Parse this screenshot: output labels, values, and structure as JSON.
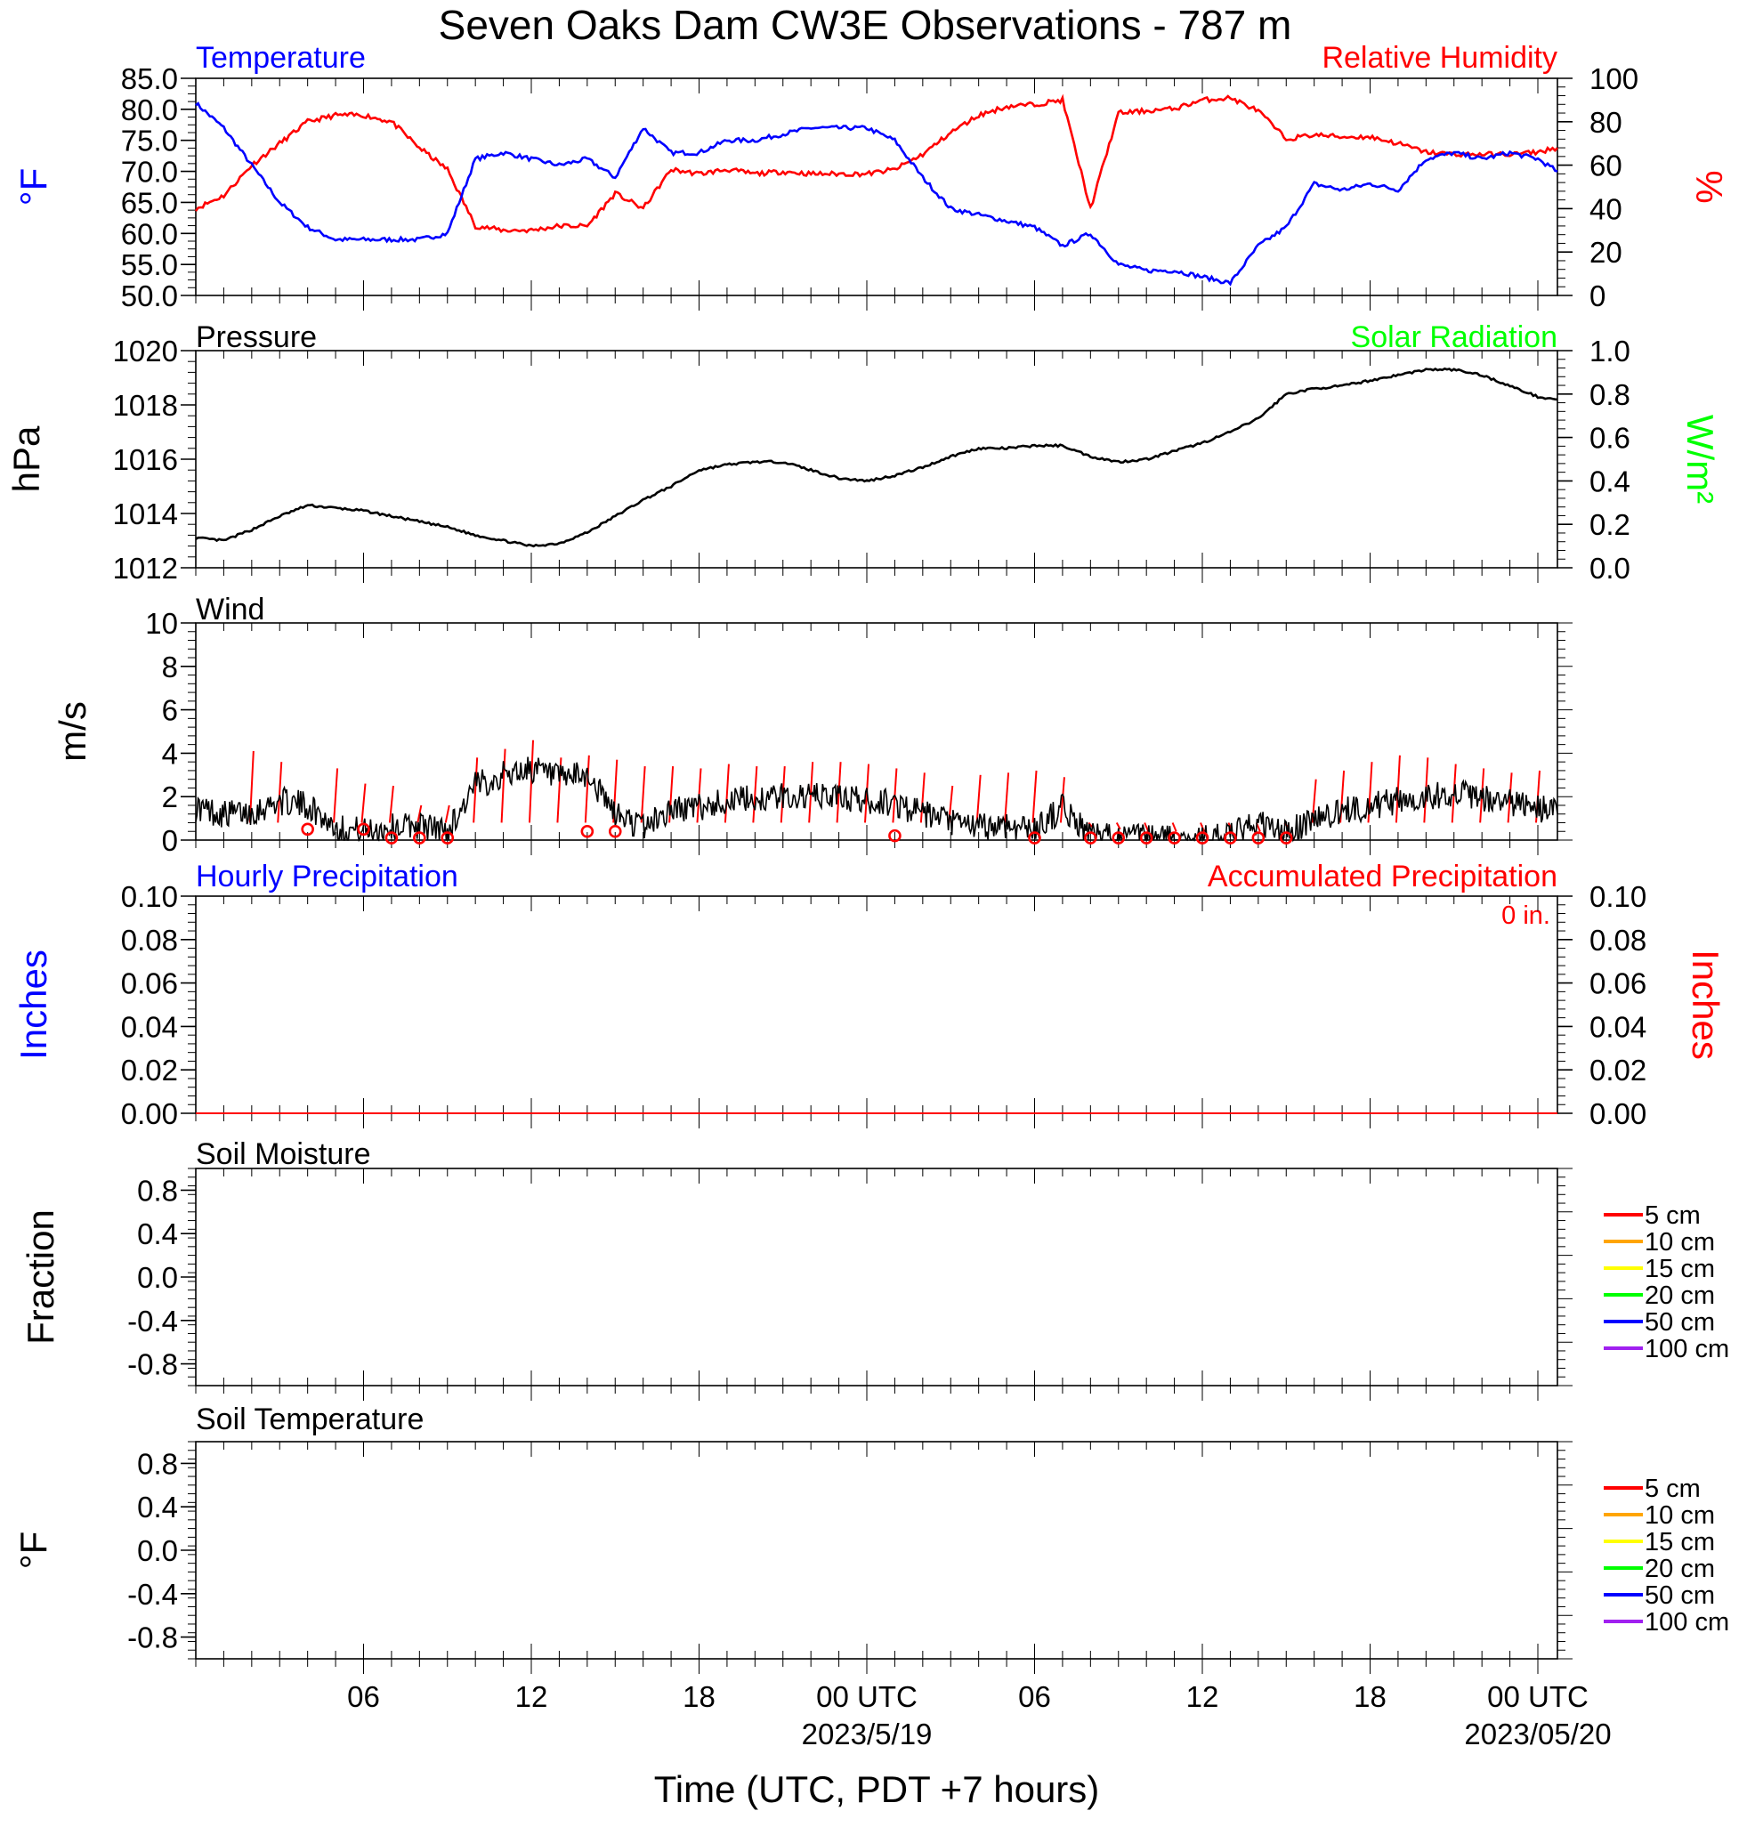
{
  "title": "Seven Oaks Dam CW3E Observations - 787 m",
  "x_axis": {
    "title": "Time (UTC, PDT +7 hours)",
    "ticks": [
      {
        "hour": 6,
        "label": "06",
        "sub": ""
      },
      {
        "hour": 12,
        "label": "12",
        "sub": ""
      },
      {
        "hour": 18,
        "label": "18",
        "sub": ""
      },
      {
        "hour": 24,
        "label": "00 UTC",
        "sub": "2023/5/19"
      },
      {
        "hour": 30,
        "label": "06",
        "sub": ""
      },
      {
        "hour": 36,
        "label": "12",
        "sub": ""
      },
      {
        "hour": 42,
        "label": "18",
        "sub": ""
      },
      {
        "hour": 48,
        "label": "00 UTC",
        "sub": "2023/05/20"
      }
    ]
  },
  "colors": {
    "temperature": "#0000ff",
    "humidity": "#ff0000",
    "pressure": "#000000",
    "solar": "#00ff00",
    "wind": "#000000",
    "gust": "#ff0000",
    "hourly_precip": "#0000ff",
    "accum_precip": "#ff0000"
  },
  "panels": {
    "temp_rh": {
      "title_left": "Temperature",
      "title_right": "Relative Humidity",
      "ylabel_left": "°F",
      "ylabel_right": "%",
      "left_ticks": [
        "50.0",
        "55.0",
        "60.0",
        "65.0",
        "70.0",
        "75.0",
        "80.0",
        "85.0"
      ],
      "right_ticks": [
        "0",
        "20",
        "40",
        "60",
        "80",
        "100"
      ]
    },
    "pressure": {
      "title_left": "Pressure",
      "title_right": "Solar Radiation",
      "ylabel_left": "hPa",
      "ylabel_right": "W/m²",
      "left_ticks": [
        "1012",
        "1014",
        "1016",
        "1018",
        "1020"
      ],
      "right_ticks": [
        "0.0",
        "0.2",
        "0.4",
        "0.6",
        "0.8",
        "1.0"
      ]
    },
    "wind": {
      "title_left": "Wind",
      "ylabel_left": "m/s",
      "left_ticks": [
        "0",
        "2",
        "4",
        "6",
        "8",
        "10"
      ]
    },
    "precip": {
      "title_left": "Hourly Precipitation",
      "title_right": "Accumulated Precipitation",
      "accum_text": "0 in.",
      "ylabel_left": "Inches",
      "ylabel_right": "Inches",
      "left_ticks": [
        "0.00",
        "0.02",
        "0.04",
        "0.06",
        "0.08",
        "0.10"
      ],
      "right_ticks": [
        "0.00",
        "0.02",
        "0.04",
        "0.06",
        "0.08",
        "0.10"
      ]
    },
    "soil_moisture": {
      "title_left": "Soil Moisture",
      "ylabel_left": "Fraction",
      "left_ticks": [
        "-0.8",
        "-0.4",
        "0.0",
        "0.4",
        "0.8"
      ]
    },
    "soil_temp": {
      "title_left": "Soil Temperature",
      "ylabel_left": "°F",
      "left_ticks": [
        "-0.8",
        "-0.4",
        "0.0",
        "0.4",
        "0.8"
      ]
    }
  },
  "soil_legend": [
    {
      "label": "5 cm",
      "color": "#ff0000"
    },
    {
      "label": "10 cm",
      "color": "#ffa500"
    },
    {
      "label": "15 cm",
      "color": "#ffff00"
    },
    {
      "label": "20 cm",
      "color": "#00ff00"
    },
    {
      "label": "50 cm",
      "color": "#0000ff"
    },
    {
      "label": "100 cm",
      "color": "#a020f0"
    }
  ],
  "chart_data": [
    {
      "type": "line",
      "title": "Temperature",
      "ylabel": "°F",
      "ylim": [
        50,
        85
      ],
      "x_hours": [
        0,
        1,
        2,
        3,
        4,
        5,
        6,
        7,
        8,
        9,
        10,
        11,
        12,
        13,
        14,
        15,
        16,
        17,
        18,
        19,
        20,
        21,
        22,
        23,
        24,
        25,
        26,
        27,
        28,
        29,
        30,
        31,
        32,
        33,
        34,
        35,
        36,
        37,
        38,
        39,
        40,
        41,
        42,
        43,
        44,
        45,
        46,
        47,
        48,
        48.7
      ],
      "series": [
        {
          "name": "Temperature",
          "values": [
            81,
            77,
            71,
            65,
            61,
            59,
            59,
            59,
            59,
            60,
            72,
            73,
            72,
            71,
            72,
            69,
            77,
            73,
            73,
            75,
            75,
            76,
            77,
            77,
            77,
            75,
            69,
            64,
            63,
            62,
            61,
            58,
            60,
            55,
            54,
            54,
            53,
            52,
            58,
            61,
            68,
            67,
            68,
            67,
            72,
            73,
            72,
            73,
            72,
            70
          ]
        }
      ]
    },
    {
      "type": "line",
      "title": "Relative Humidity",
      "ylabel": "%",
      "ylim": [
        0,
        100
      ],
      "x_hours": [
        0,
        1,
        2,
        3,
        4,
        5,
        6,
        7,
        8,
        9,
        10,
        11,
        12,
        13,
        14,
        15,
        16,
        17,
        18,
        19,
        20,
        21,
        22,
        23,
        24,
        25,
        26,
        27,
        28,
        29,
        30,
        31,
        32,
        33,
        34,
        35,
        36,
        37,
        38,
        39,
        40,
        41,
        42,
        43,
        44,
        45,
        46,
        47,
        48,
        48.7
      ],
      "series": [
        {
          "name": "Relative Humidity",
          "values": [
            40,
            46,
            60,
            70,
            80,
            83,
            83,
            80,
            68,
            58,
            32,
            30,
            30,
            32,
            32,
            47,
            40,
            58,
            56,
            58,
            56,
            57,
            56,
            56,
            56,
            58,
            65,
            75,
            83,
            87,
            88,
            90,
            40,
            84,
            85,
            86,
            90,
            91,
            85,
            72,
            74,
            73,
            73,
            70,
            66,
            65,
            65,
            65,
            66,
            68
          ]
        }
      ]
    },
    {
      "type": "line",
      "title": "Pressure",
      "ylabel": "hPa",
      "ylim": [
        1012,
        1020
      ],
      "x_hours": [
        0,
        1,
        2,
        3,
        4,
        5,
        6,
        7,
        8,
        9,
        10,
        11,
        12,
        13,
        14,
        15,
        16,
        17,
        18,
        19,
        20,
        21,
        22,
        23,
        24,
        25,
        26,
        27,
        28,
        29,
        30,
        31,
        32,
        33,
        34,
        35,
        36,
        37,
        38,
        39,
        40,
        41,
        42,
        43,
        44,
        45,
        46,
        47,
        48,
        48.7
      ],
      "series": [
        {
          "name": "Pressure",
          "values": [
            1013.1,
            1013.0,
            1013.4,
            1013.9,
            1014.3,
            1014.2,
            1014.1,
            1013.9,
            1013.7,
            1013.5,
            1013.2,
            1013.0,
            1012.8,
            1012.9,
            1013.3,
            1013.9,
            1014.5,
            1015.0,
            1015.6,
            1015.8,
            1015.9,
            1015.9,
            1015.6,
            1015.3,
            1015.2,
            1015.4,
            1015.7,
            1016.1,
            1016.4,
            1016.4,
            1016.5,
            1016.5,
            1016.1,
            1015.9,
            1016.0,
            1016.3,
            1016.6,
            1017.0,
            1017.5,
            1018.4,
            1018.6,
            1018.7,
            1018.9,
            1019.1,
            1019.3,
            1019.3,
            1019.1,
            1018.7,
            1018.3,
            1018.2
          ]
        }
      ]
    },
    {
      "type": "line",
      "title": "Wind",
      "ylabel": "m/s",
      "ylim": [
        0,
        10
      ],
      "x_hours": [
        0,
        1,
        2,
        3,
        4,
        5,
        6,
        7,
        8,
        9,
        10,
        11,
        12,
        13,
        14,
        15,
        16,
        17,
        18,
        19,
        20,
        21,
        22,
        23,
        24,
        25,
        26,
        27,
        28,
        29,
        30,
        31,
        32,
        33,
        34,
        35,
        36,
        37,
        38,
        39,
        40,
        41,
        42,
        43,
        44,
        45,
        46,
        47,
        48,
        48.7
      ],
      "series": [
        {
          "name": "Wind",
          "values": [
            1.5,
            1.2,
            1.3,
            1.8,
            1.6,
            0.6,
            0.4,
            0.6,
            0.7,
            0.4,
            2.5,
            3.0,
            3.3,
            2.8,
            3.0,
            1.2,
            0.6,
            1.4,
            1.5,
            1.8,
            1.9,
            2.0,
            2.0,
            2.0,
            1.8,
            1.7,
            1.2,
            0.8,
            0.6,
            0.7,
            0.5,
            1.5,
            0.2,
            0.1,
            0.1,
            0.1,
            0.1,
            0.2,
            0.8,
            0.3,
            1.0,
            1.3,
            1.6,
            1.8,
            2.0,
            2.2,
            1.9,
            1.7,
            1.5,
            1.2
          ]
        },
        {
          "name": "Wind gust",
          "x_hours": [
            2,
            3,
            5,
            6,
            7,
            8,
            9,
            10,
            11,
            12,
            13,
            14,
            15,
            16,
            17,
            18,
            19,
            20,
            21,
            22,
            23,
            24,
            25,
            26,
            27,
            28,
            29,
            30,
            31,
            32,
            33,
            34,
            35,
            36,
            37,
            38,
            39,
            40,
            41,
            42,
            43,
            44,
            45,
            46,
            47,
            48
          ],
          "values": [
            4.1,
            3.6,
            3.3,
            2.6,
            2.5,
            1.6,
            1.6,
            3.8,
            4.2,
            4.6,
            3.8,
            3.9,
            3.7,
            3.4,
            3.4,
            3.3,
            3.5,
            3.4,
            3.4,
            3.6,
            3.6,
            3.5,
            3.3,
            3.1,
            2.5,
            3.0,
            3.1,
            3.2,
            2.9,
            0.6,
            0.5,
            0.4,
            0.4,
            0.4,
            0.4,
            0.4,
            0.6,
            2.8,
            3.2,
            3.6,
            3.9,
            3.8,
            3.5,
            3.3,
            3.1,
            3.2
          ]
        },
        {
          "name": "Calm",
          "x_hours": [
            4,
            6,
            7,
            8,
            9,
            14,
            15,
            25,
            30,
            32,
            33,
            34,
            35,
            36,
            37,
            38,
            39
          ],
          "values": [
            0.5,
            0.5,
            0.1,
            0.1,
            0.1,
            0.4,
            0.4,
            0.2,
            0.1,
            0.1,
            0.1,
            0.1,
            0.1,
            0.1,
            0.1,
            0.1,
            0.1
          ]
        }
      ]
    },
    {
      "type": "line",
      "title": "Hourly Precipitation",
      "ylabel": "Inches",
      "ylim": [
        0,
        0.1
      ],
      "x_hours": [
        0,
        48.7
      ],
      "series": [
        {
          "name": "Hourly Precipitation",
          "values": [
            0,
            0
          ]
        },
        {
          "name": "Accumulated Precipitation",
          "values": [
            0,
            0
          ]
        }
      ]
    },
    {
      "type": "line",
      "title": "Soil Moisture",
      "ylabel": "Fraction",
      "ylim": [
        -1,
        1
      ],
      "series": []
    },
    {
      "type": "line",
      "title": "Soil Temperature",
      "ylabel": "°F",
      "ylim": [
        -1,
        1
      ],
      "series": []
    }
  ]
}
